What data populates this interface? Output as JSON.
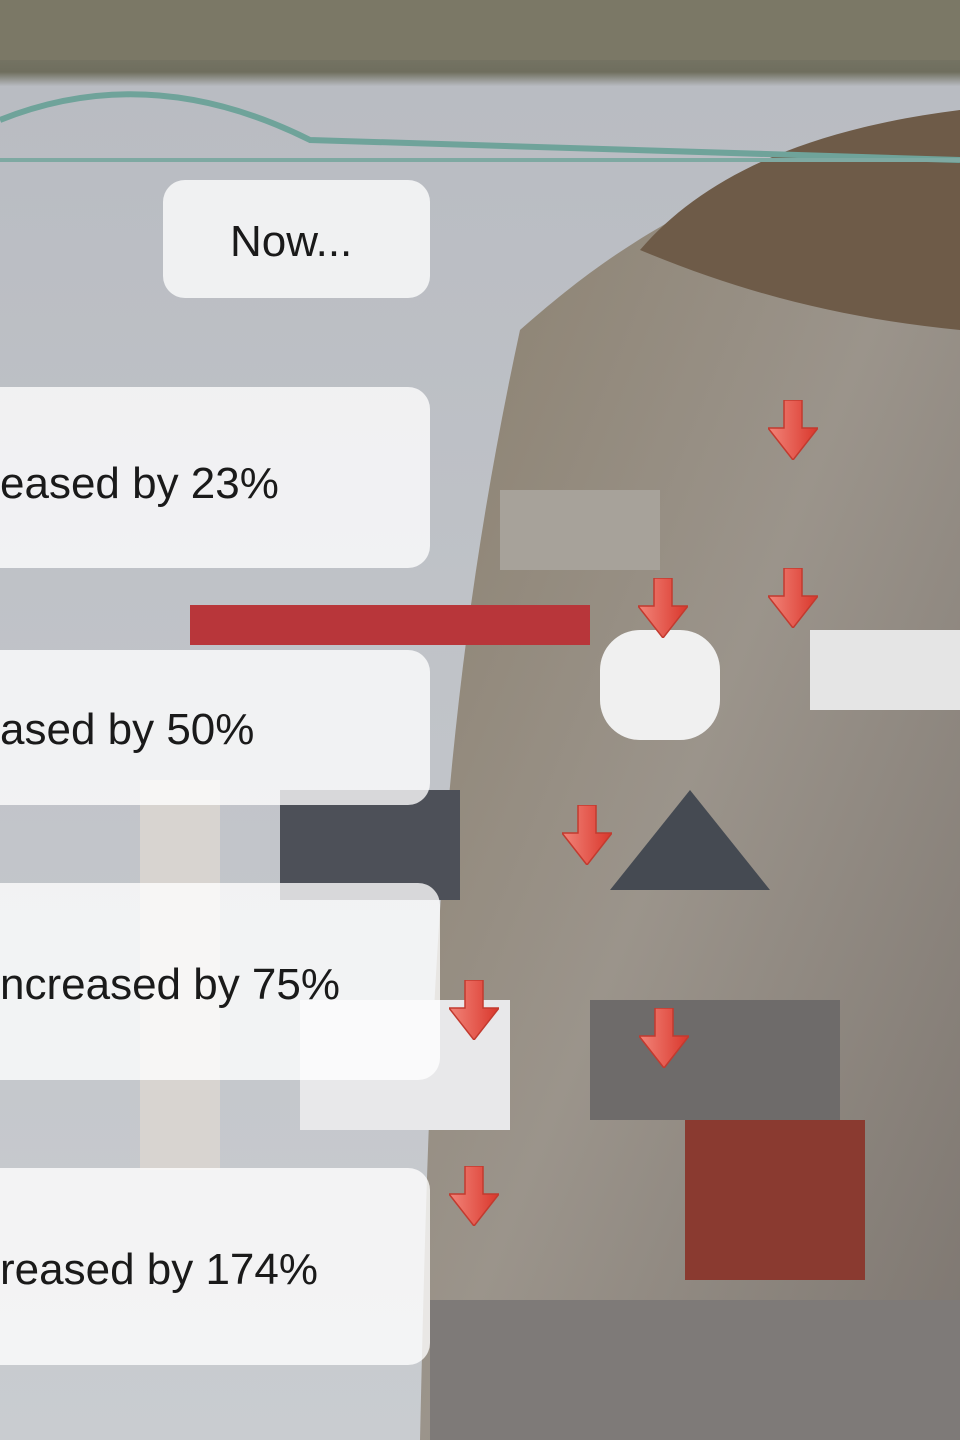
{
  "labels": [
    "Now...",
    "eased by 23%",
    "ased by 50%",
    "ncreased by 75%",
    "reased by 174%"
  ]
}
